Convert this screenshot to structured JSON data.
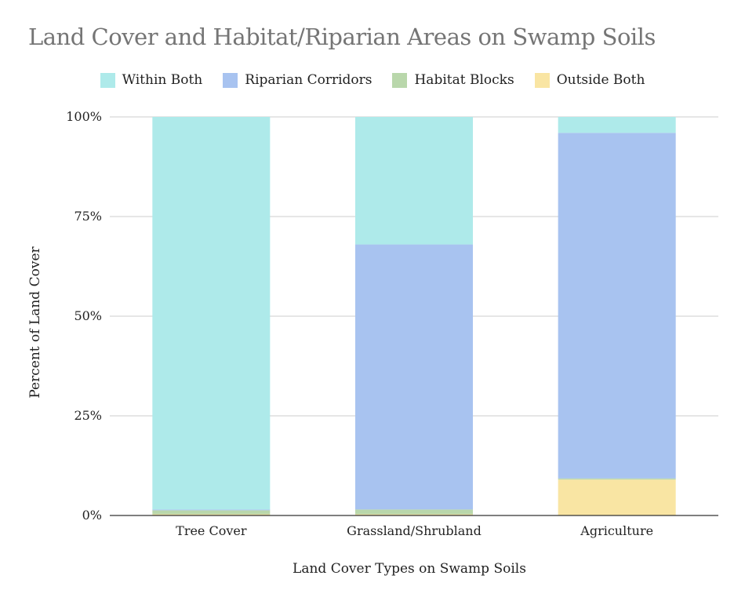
{
  "chart_data": {
    "type": "bar",
    "stacked": true,
    "title": "Land Cover and Habitat/Riparian Areas on Swamp Soils",
    "xlabel": "Land Cover Types on Swamp Soils",
    "ylabel": "Percent of Land Cover",
    "categories": [
      "Tree Cover",
      "Grassland/Shrubland",
      "Agriculture"
    ],
    "y_ticks": [
      "0%",
      "25%",
      "50%",
      "75%",
      "100%"
    ],
    "ylim": [
      0,
      100
    ],
    "grid": true,
    "legend_position": "top",
    "series": [
      {
        "name": "Outside Both",
        "color": "#f9e5a3",
        "values": [
          0.3,
          0.3,
          9.0
        ]
      },
      {
        "name": "Habitat Blocks",
        "color": "#b9d7ab",
        "values": [
          1.0,
          1.2,
          0.3
        ]
      },
      {
        "name": "Riparian Corridors",
        "color": "#a8c3f0",
        "values": [
          0.2,
          66.5,
          86.7
        ]
      },
      {
        "name": "Within Both",
        "color": "#aeeaea",
        "values": [
          98.5,
          32.0,
          4.0
        ]
      }
    ],
    "legend_order": [
      "Within Both",
      "Riparian Corridors",
      "Habitat Blocks",
      "Outside Both"
    ]
  }
}
